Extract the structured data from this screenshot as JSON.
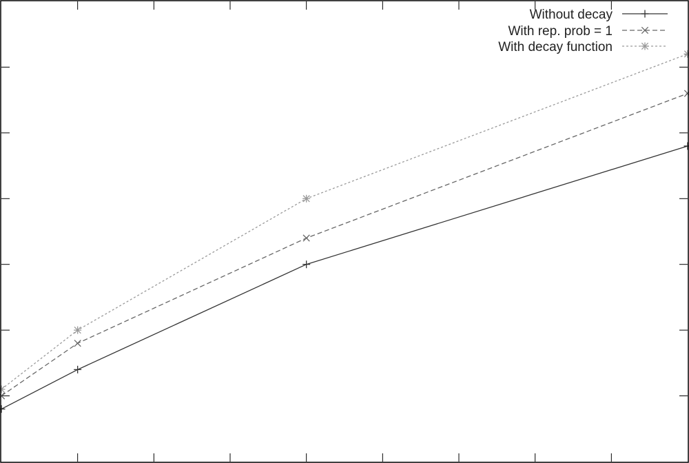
{
  "chart_data": {
    "type": "line",
    "title": "",
    "xlabel": "",
    "ylabel": "",
    "xlim": [
      0,
      9
    ],
    "ylim": [
      0,
      7
    ],
    "grid": false,
    "legend_position": "top-right",
    "x_tick_values": [
      1,
      2,
      3,
      4,
      5,
      6,
      7,
      8
    ],
    "y_tick_values": [
      1,
      2,
      3,
      4,
      5,
      6
    ],
    "x_tick_labels": [],
    "y_tick_labels": [],
    "series": [
      {
        "name": "Without decay",
        "marker": "plus",
        "dash": "solid",
        "color": "#333333",
        "x": [
          0,
          1,
          4,
          9
        ],
        "y": [
          0.8,
          1.4,
          3.0,
          4.8
        ]
      },
      {
        "name": "With rep. prob = 1",
        "marker": "cross",
        "dash": "dashed",
        "color": "#666666",
        "x": [
          0,
          1,
          4,
          9
        ],
        "y": [
          1.0,
          1.8,
          3.4,
          5.6
        ]
      },
      {
        "name": "With decay function",
        "marker": "asterisk",
        "dash": "dotted",
        "color": "#999999",
        "x": [
          0,
          1,
          4,
          9
        ],
        "y": [
          1.1,
          2.0,
          4.0,
          6.2
        ]
      }
    ]
  }
}
